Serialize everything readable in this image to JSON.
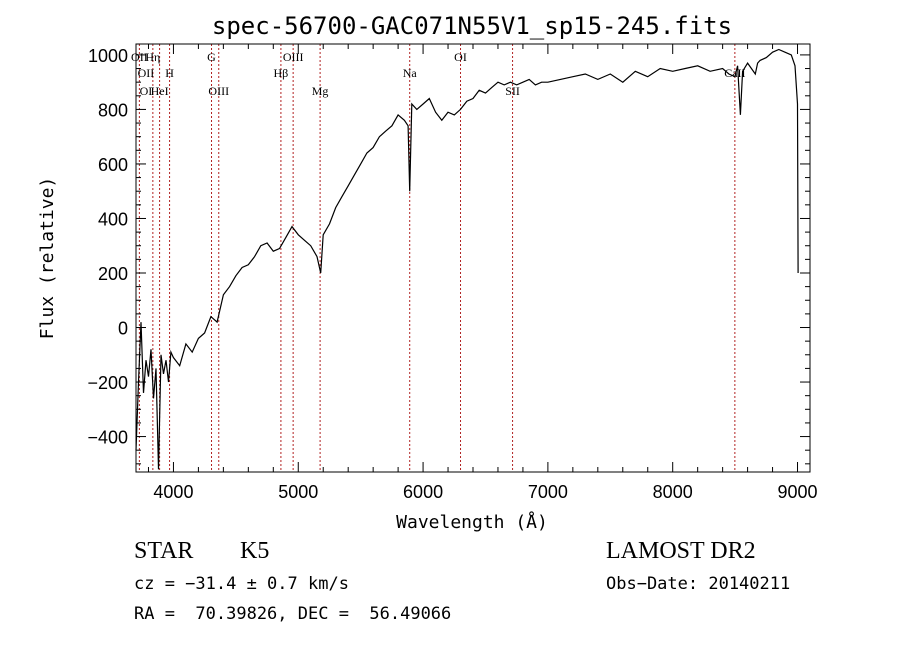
{
  "chart_data": {
    "type": "line",
    "title": "spec-56700-GAC071N55V1_sp15-245.fits",
    "xlabel": "Wavelength (Å)",
    "ylabel": "Flux (relative)",
    "xlim": [
      3700,
      9100
    ],
    "ylim": [
      -530,
      1040
    ],
    "x_ticks": [
      4000,
      5000,
      6000,
      7000,
      8000,
      9000
    ],
    "x_tick_labels": [
      "4000",
      "5000",
      "6000",
      "7000",
      "8000",
      "9000"
    ],
    "y_ticks": [
      -400,
      -200,
      0,
      200,
      400,
      600,
      800,
      1000
    ],
    "y_tick_labels": [
      "−400",
      "−200",
      "0",
      "200",
      "400",
      "600",
      "800",
      "1000"
    ],
    "line_color": "#000000",
    "marker_color": "#b22222",
    "series": [
      {
        "x": [
          3700,
          3720,
          3740,
          3760,
          3780,
          3800,
          3820,
          3840,
          3860,
          3880,
          3900,
          3920,
          3940,
          3960,
          3980,
          4000,
          4050,
          4100,
          4150,
          4200,
          4250,
          4300,
          4350,
          4400,
          4450,
          4500,
          4550,
          4600,
          4650,
          4700,
          4750,
          4800,
          4850,
          4900,
          4950,
          5000,
          5050,
          5100,
          5150,
          5180,
          5200,
          5250,
          5300,
          5350,
          5400,
          5450,
          5500,
          5550,
          5600,
          5650,
          5700,
          5750,
          5800,
          5850,
          5880,
          5893,
          5910,
          5950,
          6000,
          6050,
          6100,
          6150,
          6200,
          6250,
          6300,
          6350,
          6400,
          6450,
          6500,
          6550,
          6600,
          6650,
          6700,
          6750,
          6800,
          6850,
          6900,
          6950,
          7000,
          7100,
          7200,
          7300,
          7400,
          7500,
          7600,
          7700,
          7800,
          7900,
          8000,
          8100,
          8200,
          8300,
          8400,
          8450,
          8498,
          8520,
          8542,
          8560,
          8600,
          8662,
          8680,
          8700,
          8750,
          8800,
          8850,
          8900,
          8950,
          8980,
          9000,
          9005
        ],
        "y": [
          -450,
          -200,
          20,
          -240,
          -120,
          -180,
          -80,
          -260,
          -150,
          -520,
          -100,
          -170,
          -120,
          -200,
          -90,
          -110,
          -140,
          -60,
          -90,
          -40,
          -20,
          40,
          20,
          120,
          150,
          190,
          220,
          230,
          260,
          300,
          310,
          280,
          290,
          330,
          370,
          340,
          320,
          300,
          260,
          200,
          340,
          380,
          440,
          480,
          520,
          560,
          600,
          640,
          660,
          700,
          720,
          740,
          780,
          760,
          740,
          500,
          820,
          800,
          820,
          840,
          790,
          760,
          790,
          780,
          800,
          830,
          840,
          870,
          860,
          880,
          900,
          890,
          900,
          890,
          900,
          910,
          890,
          900,
          900,
          910,
          920,
          930,
          910,
          930,
          900,
          940,
          920,
          950,
          940,
          950,
          960,
          940,
          950,
          930,
          920,
          960,
          780,
          940,
          970,
          930,
          970,
          980,
          990,
          1010,
          1020,
          1010,
          1000,
          960,
          820,
          200
        ]
      }
    ],
    "line_markers": [
      {
        "name": "OII",
        "x": 3727,
        "label_row": "top"
      },
      {
        "name": "Hη",
        "x": 3835,
        "label_row": "top"
      },
      {
        "name": "H",
        "x": 3969,
        "label_row": "mid"
      },
      {
        "name": "HeI",
        "x": 3889,
        "label_row": "bottom"
      },
      {
        "name": "G",
        "x": 4305,
        "label_row": "top"
      },
      {
        "name": "OIII",
        "x": 4363,
        "label_row": "bottom"
      },
      {
        "name": "Hβ",
        "x": 4861,
        "label_row": "mid"
      },
      {
        "name": "OIII",
        "x": 4959,
        "label_row": "top"
      },
      {
        "name": "Mg",
        "x": 5175,
        "label_row": "bottom"
      },
      {
        "name": "Na",
        "x": 5893,
        "label_row": "mid"
      },
      {
        "name": "OI",
        "x": 6300,
        "label_row": "top"
      },
      {
        "name": "SII",
        "x": 6717,
        "label_row": "bottom"
      },
      {
        "name": "CaII",
        "x": 8498,
        "label_row": "mid"
      }
    ],
    "extra_marker_labels": [
      {
        "name": "OII",
        "row": "mid"
      },
      {
        "name": "OI",
        "row": "bottom"
      }
    ]
  },
  "info": {
    "object_class": "STAR",
    "subclass": "K5",
    "survey": "LAMOST DR2",
    "cz": "cz = −31.4 ± 0.7 km/s",
    "obs_date": "Obs−Date: 20140211",
    "coords": "RA =  70.39826, DEC =  56.49066"
  }
}
